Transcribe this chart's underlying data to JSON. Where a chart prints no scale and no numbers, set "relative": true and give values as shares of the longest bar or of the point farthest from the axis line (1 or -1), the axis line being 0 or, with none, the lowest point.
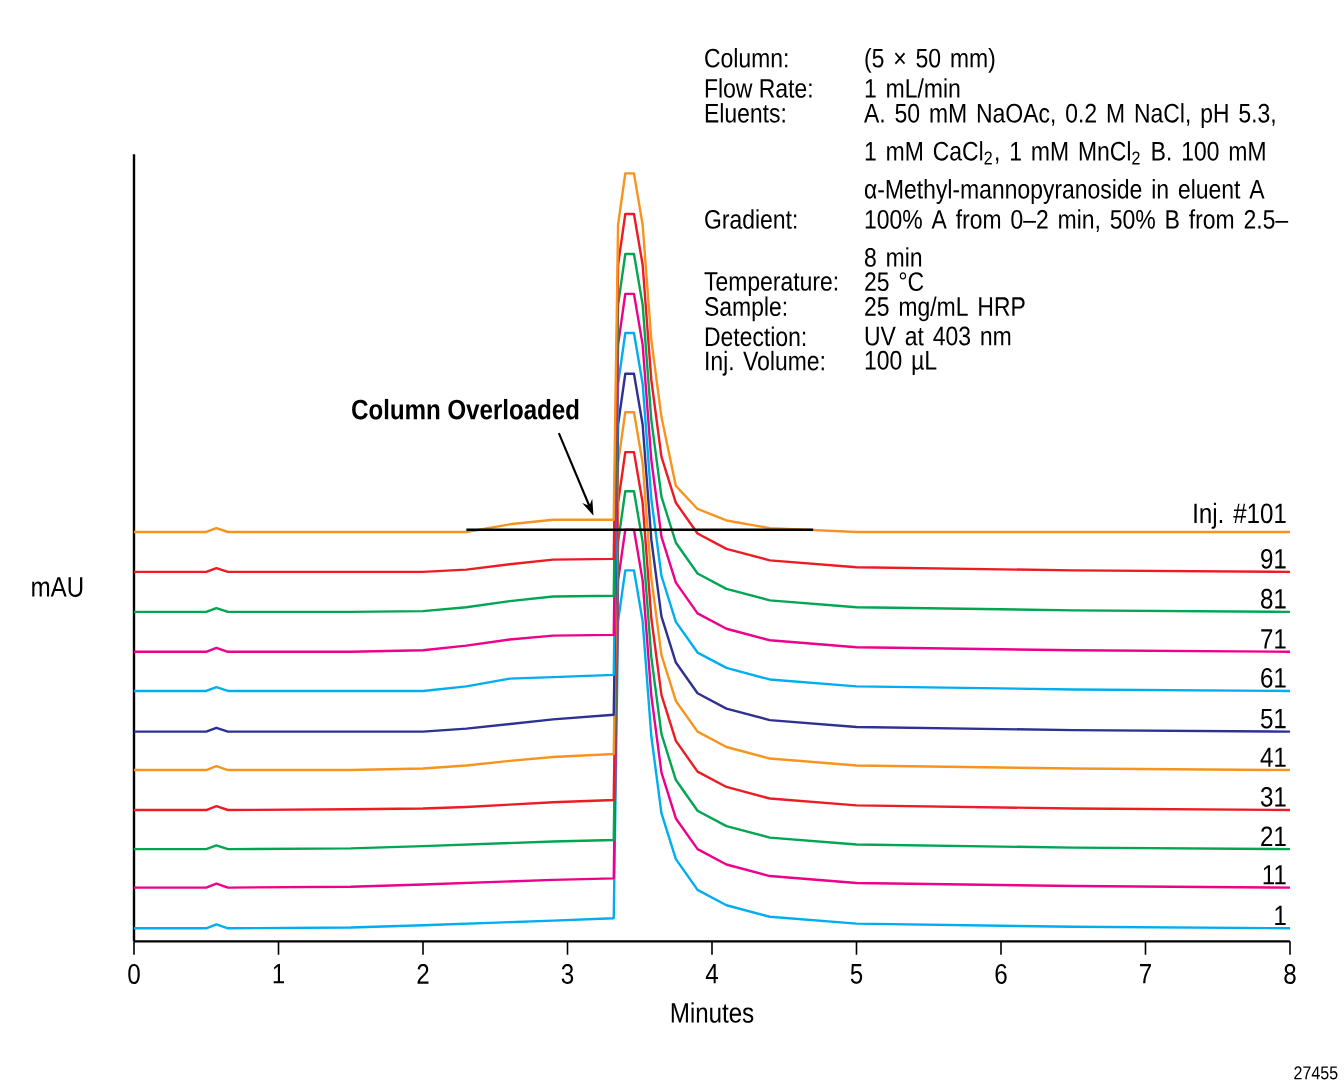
{
  "chart_data": {
    "type": "line",
    "relative": true,
    "xlabel": "Minutes",
    "ylabel": "mAU",
    "tick_labels": "x",
    "xlim": [
      0,
      8
    ],
    "xticks": [
      0,
      1,
      2,
      3,
      4,
      5,
      6,
      7,
      8
    ],
    "x": [
      0,
      0.5,
      0.57,
      0.65,
      1.5,
      2.0,
      2.3,
      2.6,
      2.9,
      3.32,
      3.35,
      3.4,
      3.46,
      3.52,
      3.58,
      3.65,
      3.75,
      3.9,
      4.1,
      4.4,
      5.0,
      6.5,
      8.0
    ],
    "series": [
      {
        "name": "1",
        "color": "#00aeef",
        "values": [
          0.017,
          0.017,
          0.022,
          0.017,
          0.018,
          0.021,
          0.023,
          0.025,
          0.027,
          0.03,
          0.417,
          0.483,
          0.483,
          0.417,
          0.267,
          0.167,
          0.107,
          0.067,
          0.047,
          0.032,
          0.023,
          0.019,
          0.017
        ]
      },
      {
        "name": "11",
        "color": "#ec008c",
        "values": [
          0.07,
          0.07,
          0.075,
          0.07,
          0.071,
          0.074,
          0.076,
          0.078,
          0.08,
          0.082,
          0.47,
          0.536,
          0.536,
          0.47,
          0.32,
          0.22,
          0.16,
          0.12,
          0.1,
          0.085,
          0.076,
          0.072,
          0.07
        ]
      },
      {
        "name": "21",
        "color": "#00a651",
        "values": [
          0.12,
          0.12,
          0.125,
          0.12,
          0.121,
          0.124,
          0.126,
          0.128,
          0.13,
          0.132,
          0.52,
          0.586,
          0.586,
          0.52,
          0.37,
          0.27,
          0.21,
          0.17,
          0.15,
          0.135,
          0.126,
          0.122,
          0.12
        ]
      },
      {
        "name": "31",
        "color": "#ed1c24",
        "values": [
          0.171,
          0.171,
          0.176,
          0.171,
          0.172,
          0.173,
          0.175,
          0.178,
          0.181,
          0.184,
          0.571,
          0.637,
          0.637,
          0.571,
          0.421,
          0.321,
          0.261,
          0.221,
          0.201,
          0.186,
          0.177,
          0.173,
          0.171
        ]
      },
      {
        "name": "41",
        "color": "#f7941d",
        "values": [
          0.223,
          0.223,
          0.228,
          0.223,
          0.223,
          0.225,
          0.229,
          0.235,
          0.24,
          0.244,
          0.623,
          0.689,
          0.689,
          0.623,
          0.473,
          0.373,
          0.313,
          0.273,
          0.253,
          0.238,
          0.229,
          0.225,
          0.223
        ]
      },
      {
        "name": "51",
        "color": "#2e3192",
        "values": [
          0.273,
          0.273,
          0.278,
          0.273,
          0.273,
          0.273,
          0.277,
          0.283,
          0.289,
          0.295,
          0.673,
          0.739,
          0.739,
          0.673,
          0.523,
          0.423,
          0.363,
          0.323,
          0.303,
          0.288,
          0.279,
          0.275,
          0.273
        ]
      },
      {
        "name": "61",
        "color": "#00aeef",
        "values": [
          0.326,
          0.326,
          0.331,
          0.326,
          0.326,
          0.326,
          0.332,
          0.342,
          0.344,
          0.347,
          0.726,
          0.792,
          0.792,
          0.726,
          0.576,
          0.476,
          0.416,
          0.376,
          0.356,
          0.341,
          0.332,
          0.328,
          0.326
        ]
      },
      {
        "name": "71",
        "color": "#ec008c",
        "values": [
          0.377,
          0.377,
          0.382,
          0.377,
          0.377,
          0.379,
          0.385,
          0.393,
          0.398,
          0.399,
          0.777,
          0.843,
          0.843,
          0.777,
          0.627,
          0.527,
          0.467,
          0.427,
          0.407,
          0.392,
          0.383,
          0.379,
          0.377
        ]
      },
      {
        "name": "81",
        "color": "#00a651",
        "values": [
          0.429,
          0.429,
          0.434,
          0.429,
          0.429,
          0.43,
          0.435,
          0.443,
          0.449,
          0.45,
          0.829,
          0.895,
          0.895,
          0.829,
          0.679,
          0.579,
          0.519,
          0.479,
          0.459,
          0.444,
          0.435,
          0.431,
          0.429
        ]
      },
      {
        "name": "91",
        "color": "#ed1c24",
        "values": [
          0.481,
          0.481,
          0.486,
          0.481,
          0.481,
          0.481,
          0.484,
          0.491,
          0.497,
          0.498,
          0.881,
          0.947,
          0.947,
          0.881,
          0.731,
          0.631,
          0.571,
          0.531,
          0.511,
          0.496,
          0.487,
          0.483,
          0.481
        ]
      },
      {
        "name": "Inj. #101",
        "color": "#f7941d",
        "values": [
          0.533,
          0.533,
          0.538,
          0.533,
          0.533,
          0.533,
          0.533,
          0.543,
          0.549,
          0.549,
          0.933,
          1.0,
          1.0,
          0.933,
          0.783,
          0.683,
          0.593,
          0.563,
          0.548,
          0.538,
          0.533,
          0.533,
          0.533
        ]
      },
      {
        "type": "line",
        "color": "#000000",
        "x": [
          2.3,
          4.7
        ],
        "values": [
          0.536,
          0.536
        ]
      }
    ],
    "annotations": [
      {
        "text": "Column Overloaded",
        "x": 3.18,
        "y": 0.554
      },
      "Column:",
      "(5 × 50 mm)",
      "Flow Rate:",
      "1 mL/min",
      "Eluents:",
      "A. 50 mM NaOAc, 0.2 M NaCl, pH 5.3, 1 mM CaCl$_{2}$, 1 mM MnCl$_{2}$ B. 100 mM α-Methyl-mannopyranoside in eluent A",
      "Gradient:",
      "100% A from 0–2 min, 50% B from 2.5–8 min",
      "Temperature:",
      "25 °C",
      "Sample:",
      "25 mg/mL HRP",
      "Detection:",
      "UV at 403 nm",
      "Inj. Volume:",
      "100 µL",
      "27455"
    ]
  }
}
